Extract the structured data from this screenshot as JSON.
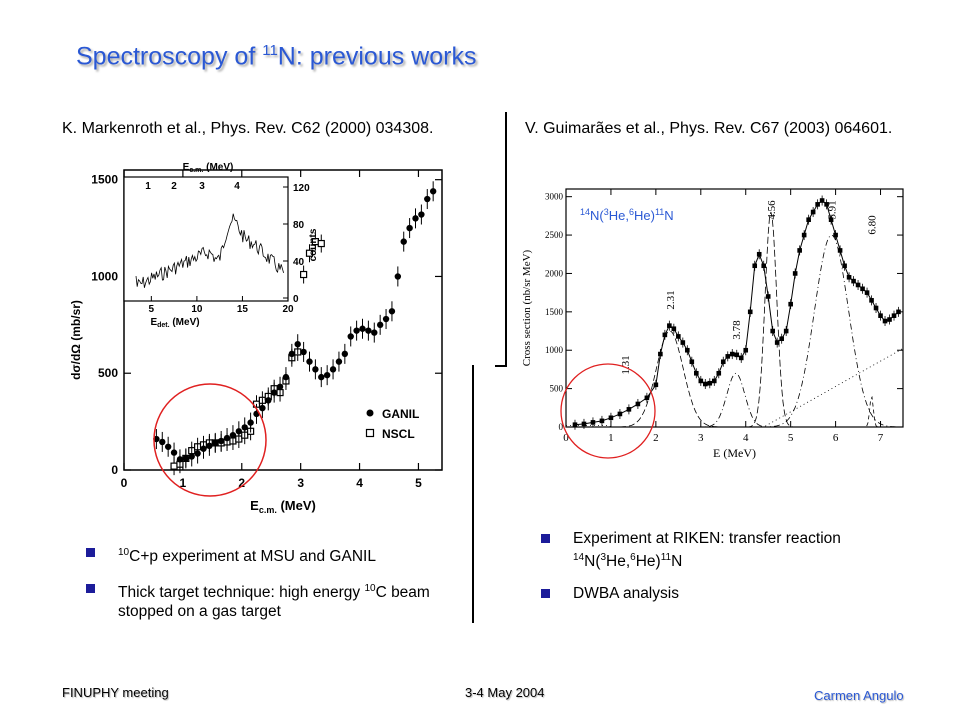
{
  "slide": {
    "title_main": "Spectroscopy of ",
    "title_sup": "11",
    "title_end": "N: previous works",
    "left_ref": "K. Markenroth et al., Phys. Rev. C62 (2000) 034308.",
    "right_ref": "V. Guimarães et al., Phys. Rev. C67 (2003) 064601.",
    "left_bullets": [
      {
        "sup": "10",
        "text": "C+p experiment at MSU and GANIL"
      },
      {
        "pre": "Thick target technique: high energy ",
        "sup": "10",
        "text": "C beam stopped on a gas target"
      }
    ],
    "right_bullets": [
      {
        "line1": "Experiment at RIKEN: transfer reaction",
        "reaction": "14N(3He,6He)11N"
      },
      {
        "text": " DWBA analysis"
      }
    ],
    "footer_left": "FINUPHY meeting",
    "footer_center": "3-4 May 2004",
    "footer_right": "Carmen Angulo",
    "colors": {
      "title": "#2a58d4",
      "bullet": "#1c1c9a",
      "circle": "#e02020",
      "reaction_label": "#2a58d4"
    }
  },
  "chart_data": [
    {
      "type": "scatter",
      "xlabel": "E",
      "xlabel_sub": "c.m.",
      "xlabel_unit": "(MeV)",
      "ylabel": "dσ/dΩ (mb/sr)",
      "xlim": [
        0,
        5.4
      ],
      "ylim": [
        0,
        1550
      ],
      "xticks": [
        "0",
        "1",
        "2",
        "3",
        "4",
        "5"
      ],
      "yticks": [
        "0",
        "500",
        "1000",
        "1500"
      ],
      "legend_position": "bottom-right",
      "series": [
        {
          "name": "GANIL",
          "marker": "filled-circle",
          "x": [
            0.55,
            0.65,
            0.75,
            0.85,
            0.95,
            1.05,
            1.15,
            1.25,
            1.35,
            1.45,
            1.55,
            1.65,
            1.75,
            1.85,
            1.95,
            2.05,
            2.15,
            2.25,
            2.35,
            2.45,
            2.55,
            2.65,
            2.75,
            2.85,
            2.95,
            3.05,
            3.15,
            3.25,
            3.35,
            3.45,
            3.55,
            3.65,
            3.75,
            3.85,
            3.95,
            4.05,
            4.15,
            4.25,
            4.35,
            4.45,
            4.55,
            4.65,
            4.75,
            4.85,
            4.95,
            5.05,
            5.15,
            5.25
          ],
          "y": [
            160,
            145,
            120,
            90,
            55,
            60,
            70,
            85,
            110,
            125,
            140,
            150,
            165,
            180,
            200,
            220,
            245,
            290,
            320,
            360,
            400,
            430,
            480,
            600,
            650,
            610,
            560,
            520,
            480,
            490,
            520,
            560,
            600,
            690,
            720,
            730,
            720,
            710,
            750,
            780,
            820,
            1000,
            1180,
            1250,
            1300,
            1320,
            1400,
            1440
          ]
        },
        {
          "name": "NSCL",
          "marker": "open-square",
          "x": [
            0.85,
            0.95,
            1.05,
            1.15,
            1.25,
            1.35,
            1.45,
            1.55,
            1.65,
            1.75,
            1.85,
            1.95,
            2.05,
            2.15,
            2.25,
            2.35,
            2.45,
            2.55,
            2.65,
            2.75,
            2.85,
            2.95,
            3.05,
            3.15,
            3.25,
            3.35
          ],
          "y": [
            20,
            30,
            60,
            100,
            120,
            130,
            140,
            140,
            140,
            145,
            150,
            160,
            180,
            200,
            340,
            360,
            380,
            420,
            400,
            460,
            580,
            610,
            1010,
            1120,
            1180,
            1170
          ]
        }
      ],
      "inset": {
        "xlabel": "E",
        "xlabel_sub": "det.",
        "xlabel_unit": "(MeV)",
        "top_label": "E",
        "top_label_sub": "c.m.",
        "top_label_unit": "(MeV)",
        "right_label": "counts",
        "xticks": [
          "5",
          "10",
          "15",
          "20"
        ],
        "yticks": [
          "0",
          "40",
          "80",
          "120"
        ],
        "top_ticks": [
          "1",
          "2",
          "3",
          "4"
        ]
      }
    },
    {
      "type": "line",
      "xlabel": "E (MeV)",
      "ylabel": "Cross section (nb/sr MeV)",
      "xlim": [
        0,
        7.5
      ],
      "ylim": [
        0,
        3100
      ],
      "xticks": [
        "0",
        "1",
        "2",
        "3",
        "4",
        "5",
        "6",
        "7"
      ],
      "yticks": [
        "0",
        "500",
        "1000",
        "1500",
        "2000",
        "2500",
        "3000"
      ],
      "reaction_label": "14N(3He,6He)11N",
      "peak_labels": [
        "1.31",
        "2.31",
        "3.78",
        "4.56",
        "5.91",
        "6.80"
      ],
      "peak_positions": [
        1.31,
        2.31,
        3.78,
        4.56,
        5.91,
        6.8
      ],
      "data": {
        "x": [
          0.2,
          0.4,
          0.6,
          0.8,
          1.0,
          1.2,
          1.4,
          1.6,
          1.8,
          2.0,
          2.1,
          2.2,
          2.3,
          2.4,
          2.5,
          2.6,
          2.7,
          2.8,
          2.9,
          3.0,
          3.1,
          3.2,
          3.3,
          3.4,
          3.5,
          3.6,
          3.7,
          3.8,
          3.9,
          4.0,
          4.1,
          4.2,
          4.3,
          4.4,
          4.5,
          4.6,
          4.7,
          4.8,
          4.9,
          5.0,
          5.1,
          5.2,
          5.3,
          5.4,
          5.5,
          5.6,
          5.7,
          5.8,
          5.9,
          6.0,
          6.1,
          6.2,
          6.3,
          6.4,
          6.5,
          6.6,
          6.7,
          6.8,
          6.9,
          7.0,
          7.1,
          7.2,
          7.3,
          7.4
        ],
        "y": [
          30,
          40,
          60,
          80,
          120,
          170,
          230,
          300,
          380,
          550,
          950,
          1200,
          1320,
          1280,
          1180,
          1100,
          1000,
          850,
          700,
          600,
          560,
          570,
          600,
          700,
          850,
          920,
          950,
          940,
          900,
          1000,
          1500,
          2100,
          2250,
          2100,
          1700,
          1250,
          1100,
          1150,
          1250,
          1600,
          2000,
          2300,
          2500,
          2700,
          2800,
          2900,
          2950,
          2900,
          2700,
          2500,
          2300,
          2100,
          1950,
          1900,
          1850,
          1800,
          1750,
          1650,
          1550,
          1450,
          1380,
          1400,
          1450,
          1500
        ]
      }
    }
  ]
}
